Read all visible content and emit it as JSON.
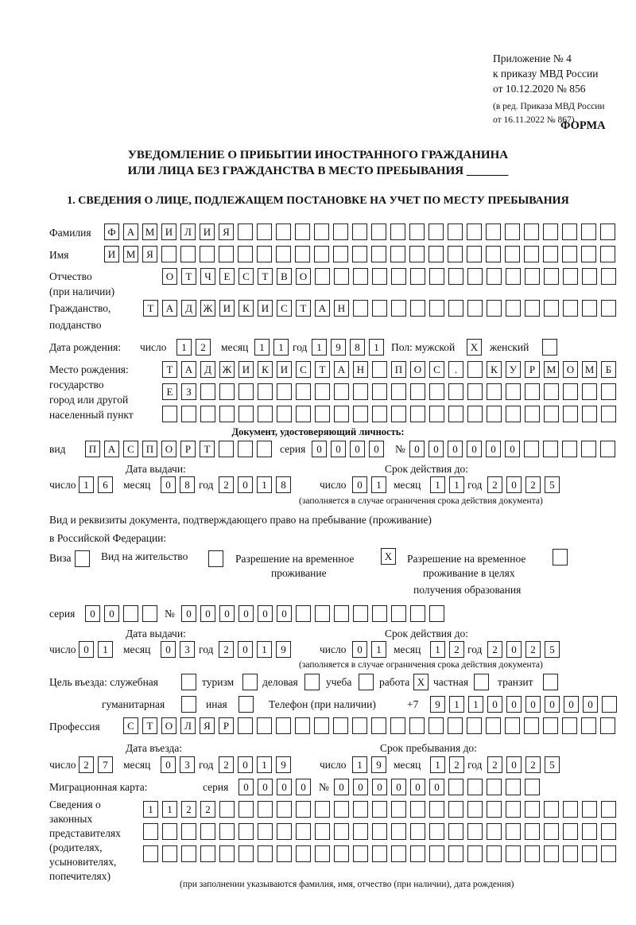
{
  "header": {
    "appendix": [
      "Приложение № 4",
      "к приказу МВД России",
      "от 10.12.2020 № 856"
    ],
    "amendment": [
      "(в ред. Приказа МВД России",
      "от 16.11.2022 № 867)"
    ],
    "form_label": "ФОРМА",
    "title_line1": "УВЕДОМЛЕНИЕ О ПРИБЫТИИ ИНОСТРАННОГО ГРАЖДАНИНА",
    "title_line2": "ИЛИ ЛИЦА БЕЗ ГРАЖДАНСТВА В МЕСТО ПРЕБЫВАНИЯ _______",
    "section1": "1. СВЕДЕНИЯ О ЛИЦЕ, ПОДЛЕЖАЩЕМ ПОСТАНОВКЕ НА УЧЕТ ПО МЕСТУ ПРЕБЫВАНИЯ"
  },
  "labels": {
    "surname": "Фамилия",
    "name": "Имя",
    "patronymic": "Отчество",
    "patronymic_note": "(при наличии)",
    "citizenship1": "Гражданство,",
    "citizenship2": "подданство",
    "birth_date": "Дата рождения:",
    "day": "число",
    "month": "месяц",
    "year": "год",
    "sex": "Пол: мужской",
    "female": "женский",
    "birthplace": [
      "Место рождения:",
      "государство",
      "город или другой",
      "населенный пункт"
    ],
    "id_doc": "Документ, удостоверяющий личность:",
    "kind": "вид",
    "series": "серия",
    "number": "№",
    "issue_date": "Дата выдачи:",
    "valid_until": "Срок действия до:",
    "validity_note": "(заполняется в случае ограничения срока действия документа)",
    "residence_doc1": "Вид и реквизиты документа, подтверждающего право на пребывание (проживание)",
    "residence_doc2": "в Российской Федерации:",
    "visa": "Виза",
    "residence_permit": "Вид на жительство",
    "temp_permit": [
      "Разрешение на временное",
      "проживание"
    ],
    "temp_permit_edu": [
      "Разрешение на временное",
      "проживание в целях",
      "получения образования"
    ],
    "purpose": "Цель въезда: служебная",
    "tourism": "туризм",
    "business": "деловая",
    "study": "учеба",
    "work": "работа",
    "private": "частная",
    "transit": "транзит",
    "humanitarian": "гуманитарная",
    "other": "иная",
    "phone": "Телефон (при наличии)",
    "phone_prefix": "+7",
    "profession": "Профессия",
    "entry_date": "Дата въезда:",
    "stay_until": "Срок пребывания до:",
    "migration_card": "Миграционная карта:",
    "representatives": [
      "Сведения о",
      "законных",
      "представителях",
      "(родителях,",
      "усыновителях,",
      "попечителях)"
    ],
    "representatives_note": "(при заполнении указываются фамилия, имя, отчество (при наличии), дата рождения)"
  },
  "person": {
    "surname": "ФАМИЛИЯ",
    "name": "ИМЯ",
    "patronymic": "ОТЧЕСТВО",
    "citizenship": "ТАДЖИКИСТАН",
    "birth_day": "12",
    "birth_month": "11",
    "birth_year": "1981",
    "sex_male": "X",
    "sex_female": "",
    "birthplace1": "ТАДЖИКИСТАН ПОС. КУРМОМБ",
    "birthplace2": "ЕЗ",
    "birthplace3": ""
  },
  "id_document": {
    "kind": "ПАСПОРТ",
    "series": "0000",
    "number": "000000",
    "issue_day": "16",
    "issue_month": "08",
    "issue_year": "2018",
    "valid_day": "01",
    "valid_month": "11",
    "valid_year": "2025"
  },
  "residence_document": {
    "visa": "",
    "residence_permit": "",
    "temp_permit": "X",
    "temp_permit_edu": "",
    "series": "00",
    "number": "000000",
    "issue_day": "01",
    "issue_month": "03",
    "issue_year": "2019",
    "valid_day": "01",
    "valid_month": "12",
    "valid_year": "2025"
  },
  "purpose": {
    "official": "",
    "tourism": "",
    "business": "",
    "study": "",
    "work": "X",
    "private": "",
    "transit": "",
    "humanitarian": "",
    "other": ""
  },
  "phone": "911000000",
  "profession": "СТОЛЯР",
  "entry": {
    "day": "27",
    "month": "03",
    "year": "2019"
  },
  "stay_until": {
    "day": "19",
    "month": "12",
    "year": "2025"
  },
  "migration_card": {
    "series": "0000",
    "number": "000000"
  },
  "representatives": [
    "1122",
    "",
    ""
  ]
}
